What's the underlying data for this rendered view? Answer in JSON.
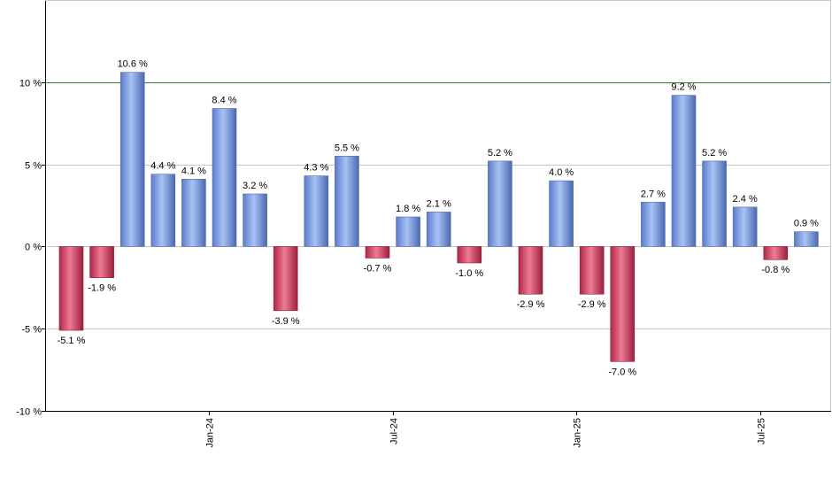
{
  "chart_data": {
    "type": "bar",
    "title": "",
    "xlabel": "",
    "ylabel": "",
    "ylim": [
      -10,
      15
    ],
    "y_ticks": [
      {
        "value": -10,
        "label": "-10 %"
      },
      {
        "value": -5,
        "label": "-5 %"
      },
      {
        "value": 0,
        "label": "0 %"
      },
      {
        "value": 5,
        "label": "5 %"
      },
      {
        "value": 10,
        "label": "10 %"
      }
    ],
    "x_ticks": [
      {
        "index": 4.5,
        "label": "Jan-24"
      },
      {
        "index": 10.5,
        "label": "Jul-24"
      },
      {
        "index": 16.5,
        "label": "Jan-25"
      },
      {
        "index": 22.5,
        "label": "Jul-25"
      }
    ],
    "reference_line": {
      "value": 10,
      "color": "#2e7d32"
    },
    "grid": true,
    "legend": "none",
    "colors": {
      "positive": "#7a9be0",
      "negative": "#c8385a"
    },
    "values": [
      -5.1,
      -1.9,
      10.6,
      4.4,
      4.1,
      8.4,
      3.2,
      -3.9,
      4.3,
      5.5,
      -0.7,
      1.8,
      2.1,
      -1.0,
      5.2,
      -2.9,
      4.0,
      -2.9,
      -7.0,
      2.7,
      9.2,
      5.2,
      2.4,
      -0.8,
      0.9
    ],
    "labels": [
      "-5.1 %",
      "-1.9 %",
      "10.6 %",
      "4.4 %",
      "4.1 %",
      "8.4 %",
      "3.2 %",
      "-3.9 %",
      "4.3 %",
      "5.5 %",
      "-0.7 %",
      "1.8 %",
      "2.1 %",
      "-1.0 %",
      "5.2 %",
      "-2.9 %",
      "4.0 %",
      "-2.9 %",
      "-7.0 %",
      "2.7 %",
      "9.2 %",
      "5.2 %",
      "2.4 %",
      "-0.8 %",
      "0.9 %"
    ]
  }
}
